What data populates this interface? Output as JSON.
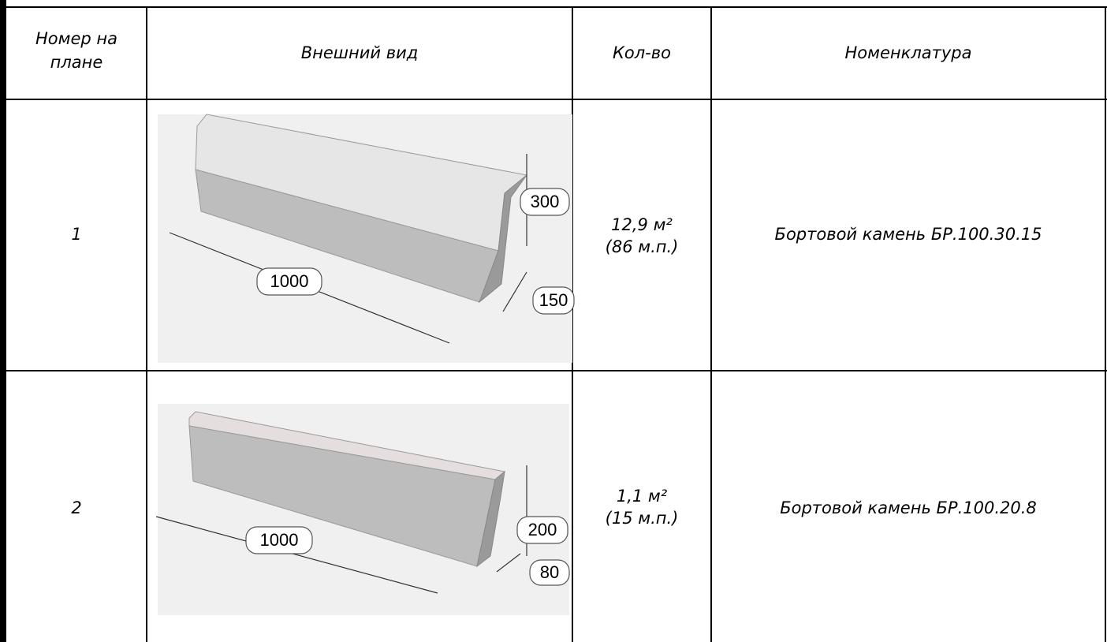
{
  "table": {
    "header": [
      "Номер на плане",
      "Внешний вид",
      "Кол-во",
      "Номенклатура"
    ],
    "rows": [
      {
        "number": "1",
        "dims": {
          "length": "1000",
          "height": "300",
          "width": "150"
        },
        "qty": [
          "12,9 м²",
          "(86 м.п.)"
        ],
        "name": "Бортовой камень БР.100.30.15"
      },
      {
        "number": "2",
        "dims": {
          "length": "1000",
          "height": "200",
          "width": "80"
        },
        "qty": [
          "1,1 м²",
          "(15 м.п.)"
        ],
        "name": "Бортовой камень БР.100.20.8"
      }
    ]
  }
}
